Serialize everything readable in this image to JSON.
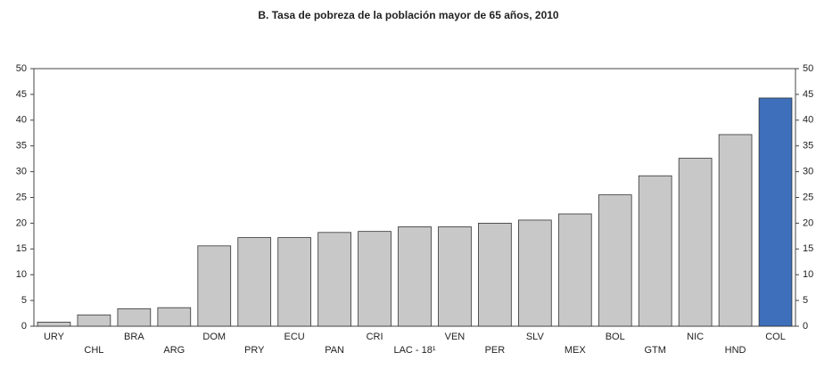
{
  "chart_data": {
    "type": "bar",
    "title": "B. Tasa de pobreza de la población mayor de 65 años, 2010",
    "categories": [
      "URY",
      "CHL",
      "BRA",
      "ARG",
      "DOM",
      "PRY",
      "ECU",
      "PAN",
      "CRI",
      "LAC - 18¹",
      "VEN",
      "PER",
      "SLV",
      "MEX",
      "BOL",
      "GTM",
      "NIC",
      "HND",
      "COL"
    ],
    "values": [
      0.8,
      2.2,
      3.4,
      3.6,
      15.6,
      17.2,
      17.2,
      18.2,
      18.4,
      19.3,
      19.3,
      20.0,
      20.6,
      21.8,
      25.5,
      29.2,
      32.6,
      37.2,
      44.3
    ],
    "colors": [
      "#c8c8c8",
      "#c8c8c8",
      "#c8c8c8",
      "#c8c8c8",
      "#c8c8c8",
      "#c8c8c8",
      "#c8c8c8",
      "#c8c8c8",
      "#c8c8c8",
      "#c8c8c8",
      "#c8c8c8",
      "#c8c8c8",
      "#c8c8c8",
      "#c8c8c8",
      "#c8c8c8",
      "#c8c8c8",
      "#c8c8c8",
      "#c8c8c8",
      "#3d6fba"
    ],
    "ylim": [
      0,
      50
    ],
    "yticks": [
      0,
      5,
      10,
      15,
      20,
      25,
      30,
      35,
      40,
      45,
      50
    ],
    "grid": false
  }
}
